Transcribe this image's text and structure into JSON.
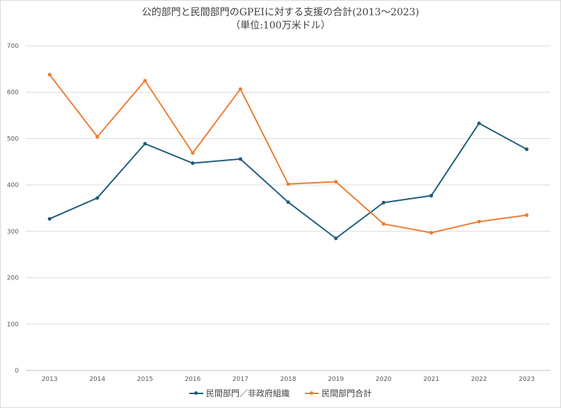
{
  "chart_data": {
    "type": "line",
    "title": "公的部門と民間部門のGPEIに対する支援の合計(2013〜2023)",
    "subtitle": "（単位:100万米ドル）",
    "categories": [
      "2013",
      "2014",
      "2015",
      "2016",
      "2017",
      "2018",
      "2019",
      "2020",
      "2021",
      "2022",
      "2023"
    ],
    "series": [
      {
        "name": "民間部門／非政府組織",
        "color": "#1f5c7a",
        "values": [
          327,
          372,
          489,
          447,
          456,
          363,
          285,
          362,
          377,
          533,
          477
        ]
      },
      {
        "name": "民間部門合計",
        "color": "#ed7d31",
        "values": [
          638,
          504,
          625,
          469,
          607,
          402,
          407,
          316,
          297,
          321,
          335
        ]
      }
    ],
    "ylim": [
      0,
      700
    ],
    "yticks": [
      "0",
      "100",
      "200",
      "300",
      "400",
      "500",
      "600",
      "700"
    ],
    "grid": true,
    "legend": "bottom"
  }
}
